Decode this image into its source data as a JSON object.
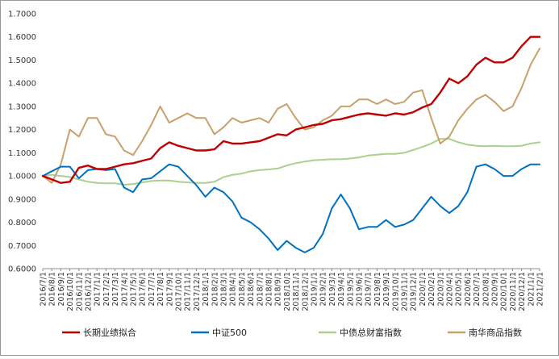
{
  "chart_data": {
    "type": "line",
    "title": "",
    "xlabel": "",
    "ylabel": "",
    "ylim": [
      0.6,
      1.7
    ],
    "y_ticks": [
      "0.6000",
      "0.7000",
      "0.8000",
      "0.9000",
      "1.0000",
      "1.1000",
      "1.2000",
      "1.3000",
      "1.4000",
      "1.5000",
      "1.6000",
      "1.7000"
    ],
    "x_ticks": [
      "2016/7/1",
      "2016/8/1",
      "2016/9/1",
      "2016/10/1",
      "2016/11/1",
      "2016/12/1",
      "2017/1/1",
      "2017/2/1",
      "2017/3/1",
      "2017/4/1",
      "2017/5/1",
      "2017/6/1",
      "2017/7/1",
      "2017/8/1",
      "2017/9/1",
      "2017/10/1",
      "2017/11/1",
      "2017/12/1",
      "2018/1/1",
      "2018/2/1",
      "2018/3/1",
      "2018/4/1",
      "2018/5/1",
      "2018/6/1",
      "2018/7/1",
      "2018/8/1",
      "2018/9/1",
      "2018/10/1",
      "2018/11/1",
      "2018/12/1",
      "2019/1/1",
      "2019/2/1",
      "2019/3/1",
      "2019/4/1",
      "2019/5/1",
      "2019/6/1",
      "2019/7/1",
      "2019/8/1",
      "2019/9/1",
      "2019/10/1",
      "2019/11/1",
      "2019/12/1",
      "2020/1/1",
      "2020/2/1",
      "2020/3/1",
      "2020/4/1",
      "2020/5/1",
      "2020/6/1",
      "2020/7/1",
      "2020/8/1",
      "2020/9/1",
      "2020/10/1",
      "2020/11/1",
      "2020/12/1",
      "2021/1/1",
      "2021/2/1"
    ],
    "grid": false,
    "legend_position": "bottom",
    "x": [
      "2016/7/1",
      "2016/8/1",
      "2016/9/1",
      "2016/10/1",
      "2016/11/1",
      "2016/12/1",
      "2017/1/1",
      "2017/2/1",
      "2017/3/1",
      "2017/4/1",
      "2017/5/1",
      "2017/6/1",
      "2017/7/1",
      "2017/8/1",
      "2017/9/1",
      "2017/10/1",
      "2017/11/1",
      "2017/12/1",
      "2018/1/1",
      "2018/2/1",
      "2018/3/1",
      "2018/4/1",
      "2018/5/1",
      "2018/6/1",
      "2018/7/1",
      "2018/8/1",
      "2018/9/1",
      "2018/10/1",
      "2018/11/1",
      "2018/12/1",
      "2019/1/1",
      "2019/2/1",
      "2019/3/1",
      "2019/4/1",
      "2019/5/1",
      "2019/6/1",
      "2019/7/1",
      "2019/8/1",
      "2019/9/1",
      "2019/10/1",
      "2019/11/1",
      "2019/12/1",
      "2020/1/1",
      "2020/2/1",
      "2020/3/1",
      "2020/4/1",
      "2020/5/1",
      "2020/6/1",
      "2020/7/1",
      "2020/8/1",
      "2020/9/1",
      "2020/10/1",
      "2020/11/1",
      "2020/12/1",
      "2021/1/1",
      "2021/2/1"
    ],
    "series": [
      {
        "name": "长期业绩拟合",
        "color": "#c00000",
        "values": [
          1.0,
          0.985,
          0.97,
          0.975,
          1.035,
          1.045,
          1.03,
          1.03,
          1.04,
          1.05,
          1.055,
          1.065,
          1.075,
          1.12,
          1.145,
          1.13,
          1.12,
          1.11,
          1.11,
          1.115,
          1.15,
          1.14,
          1.14,
          1.145,
          1.15,
          1.165,
          1.18,
          1.175,
          1.2,
          1.21,
          1.22,
          1.225,
          1.24,
          1.245,
          1.255,
          1.265,
          1.27,
          1.265,
          1.26,
          1.27,
          1.265,
          1.275,
          1.295,
          1.31,
          1.36,
          1.42,
          1.4,
          1.43,
          1.48,
          1.51,
          1.49,
          1.49,
          1.51,
          1.56,
          1.6,
          1.6
        ]
      },
      {
        "name": "中证500",
        "color": "#0070c0",
        "values": [
          1.0,
          1.02,
          1.04,
          1.04,
          0.99,
          1.025,
          1.03,
          1.025,
          1.03,
          0.95,
          0.93,
          0.985,
          0.99,
          1.02,
          1.05,
          1.04,
          1.0,
          0.96,
          0.91,
          0.95,
          0.93,
          0.89,
          0.82,
          0.8,
          0.77,
          0.73,
          0.68,
          0.72,
          0.69,
          0.67,
          0.69,
          0.75,
          0.86,
          0.92,
          0.86,
          0.77,
          0.78,
          0.78,
          0.81,
          0.78,
          0.79,
          0.81,
          0.86,
          0.91,
          0.87,
          0.84,
          0.87,
          0.93,
          1.04,
          1.05,
          1.03,
          1.0,
          1.0,
          1.03,
          1.05,
          1.05
        ]
      },
      {
        "name": "中债总财富指数",
        "color": "#a9d18e",
        "values": [
          1.0,
          1.005,
          1.0,
          0.995,
          0.985,
          0.975,
          0.97,
          0.968,
          0.968,
          0.962,
          0.965,
          0.972,
          0.978,
          0.98,
          0.98,
          0.975,
          0.972,
          0.97,
          0.97,
          0.975,
          0.995,
          1.005,
          1.01,
          1.02,
          1.025,
          1.028,
          1.032,
          1.045,
          1.055,
          1.062,
          1.068,
          1.07,
          1.072,
          1.072,
          1.075,
          1.08,
          1.088,
          1.092,
          1.095,
          1.095,
          1.1,
          1.112,
          1.125,
          1.14,
          1.16,
          1.16,
          1.145,
          1.135,
          1.13,
          1.128,
          1.13,
          1.128,
          1.128,
          1.13,
          1.14,
          1.145
        ]
      },
      {
        "name": "南华商品指数",
        "color": "#c9a06b",
        "values": [
          1.0,
          0.97,
          1.05,
          1.2,
          1.17,
          1.25,
          1.25,
          1.18,
          1.17,
          1.11,
          1.09,
          1.15,
          1.22,
          1.3,
          1.23,
          1.25,
          1.27,
          1.25,
          1.25,
          1.18,
          1.21,
          1.25,
          1.23,
          1.24,
          1.25,
          1.23,
          1.29,
          1.31,
          1.25,
          1.2,
          1.21,
          1.24,
          1.26,
          1.3,
          1.3,
          1.33,
          1.33,
          1.31,
          1.33,
          1.31,
          1.32,
          1.36,
          1.37,
          1.25,
          1.14,
          1.17,
          1.24,
          1.29,
          1.33,
          1.35,
          1.32,
          1.28,
          1.3,
          1.38,
          1.48,
          1.55
        ]
      }
    ]
  }
}
